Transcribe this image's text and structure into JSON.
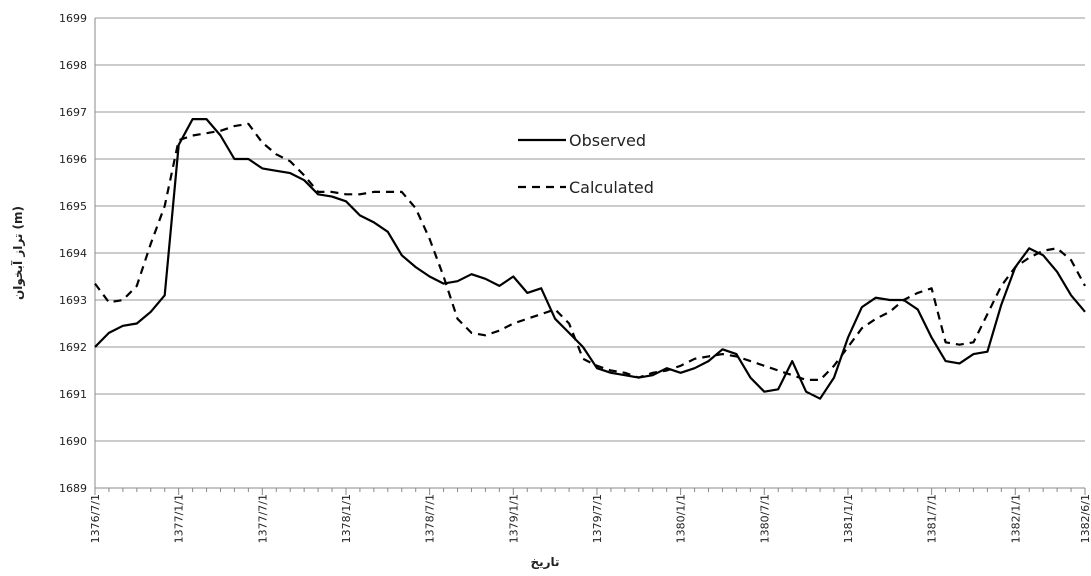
{
  "chart_data": {
    "type": "line",
    "y_axis_label": "تراز آبخوان (m)",
    "x_axis_label": "تاریخ",
    "categories": [
      "1376/7/1",
      null,
      null,
      null,
      null,
      null,
      "1377/1/1",
      null,
      null,
      null,
      null,
      null,
      "1377/7/1",
      null,
      null,
      null,
      null,
      null,
      "1378/1/1",
      null,
      null,
      null,
      null,
      null,
      "1378/7/1",
      null,
      null,
      null,
      null,
      null,
      "1379/1/1",
      null,
      null,
      null,
      null,
      null,
      "1379/7/1",
      null,
      null,
      null,
      null,
      null,
      "1380/1/1",
      null,
      null,
      null,
      null,
      null,
      "1380/7/1",
      null,
      null,
      null,
      null,
      null,
      "1381/1/1",
      null,
      null,
      null,
      null,
      null,
      "1381/7/1",
      null,
      null,
      null,
      null,
      null,
      "1382/1/1",
      null,
      null,
      null,
      null,
      "1382/6/1"
    ],
    "series": [
      {
        "name": "Observed",
        "color": "#000000",
        "dash": "none",
        "values": [
          1692.0,
          1692.3,
          1692.45,
          1692.5,
          1692.75,
          1693.1,
          1696.3,
          1696.85,
          1696.85,
          1696.5,
          1696.0,
          1696.0,
          1695.8,
          1695.75,
          1695.7,
          1695.55,
          1695.25,
          1695.2,
          1695.1,
          1694.8,
          1694.65,
          1694.45,
          1693.95,
          1693.7,
          1693.5,
          1693.35,
          1693.4,
          1693.55,
          1693.45,
          1693.3,
          1693.5,
          1693.15,
          1693.25,
          1692.6,
          1692.3,
          1692.0,
          1691.55,
          1691.45,
          1691.4,
          1691.35,
          1691.4,
          1691.55,
          1691.45,
          1691.55,
          1691.7,
          1691.95,
          1691.85,
          1691.35,
          1691.05,
          1691.1,
          1691.7,
          1691.05,
          1690.9,
          1691.35,
          1692.2,
          1692.85,
          1693.05,
          1693.0,
          1693.0,
          1692.8,
          1692.2,
          1691.7,
          1691.65,
          1691.85,
          1691.9,
          1692.9,
          1693.7,
          1694.1,
          1693.95,
          1693.6,
          1693.1,
          1692.75
        ]
      },
      {
        "name": "Calculated",
        "color": "#000000",
        "dash": "8,6",
        "values": [
          1693.35,
          1692.95,
          1693.0,
          1693.3,
          1694.2,
          1695.0,
          1696.4,
          1696.5,
          1696.55,
          1696.6,
          1696.7,
          1696.75,
          1696.35,
          1696.1,
          1695.95,
          1695.65,
          1695.3,
          1695.3,
          1695.25,
          1695.25,
          1695.3,
          1695.3,
          1695.3,
          1694.95,
          1694.3,
          1693.5,
          1692.6,
          1692.3,
          1692.25,
          1692.35,
          1692.5,
          1692.6,
          1692.7,
          1692.8,
          1692.5,
          1691.75,
          1691.6,
          1691.5,
          1691.45,
          1691.35,
          1691.45,
          1691.5,
          1691.6,
          1691.75,
          1691.8,
          1691.85,
          1691.8,
          1691.7,
          1691.6,
          1691.5,
          1691.4,
          1691.3,
          1691.3,
          1691.6,
          1692.0,
          1692.4,
          1692.6,
          1692.75,
          1693.0,
          1693.15,
          1693.25,
          1692.1,
          1692.05,
          1692.1,
          1692.7,
          1693.3,
          1693.7,
          1693.9,
          1694.05,
          1694.1,
          1693.85,
          1693.3
        ]
      }
    ],
    "ylim": [
      1689,
      1699
    ],
    "yticks": [
      1689,
      1690,
      1691,
      1692,
      1693,
      1694,
      1695,
      1696,
      1697,
      1698,
      1699
    ],
    "grid": true
  }
}
